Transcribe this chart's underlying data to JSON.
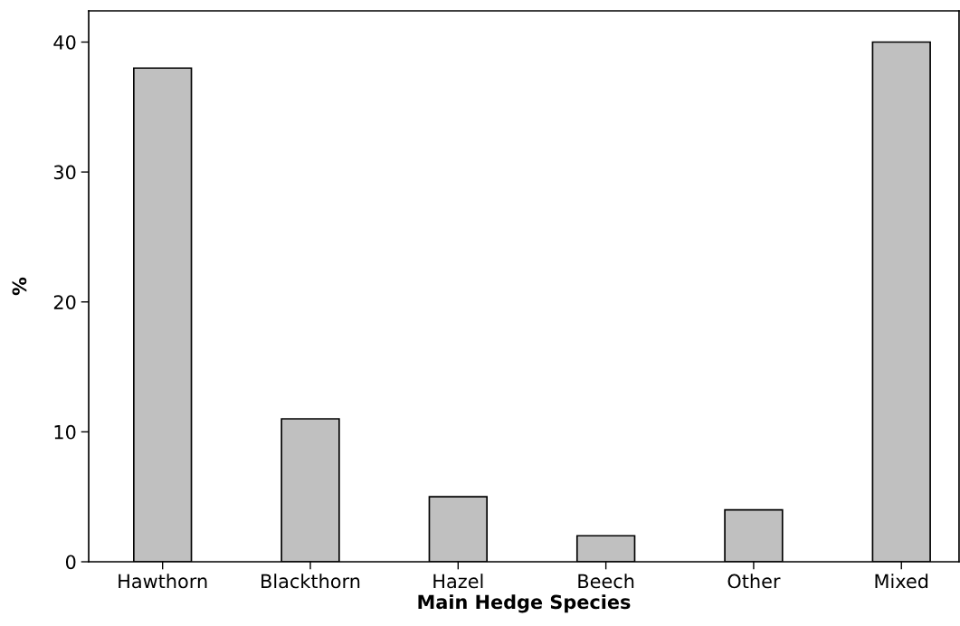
{
  "chart_data": {
    "type": "bar",
    "xlabel": "Main Hedge Species",
    "ylabel": "%",
    "categories": [
      "Hawthorn",
      "Blackthorn",
      "Hazel",
      "Beech",
      "Other",
      "Mixed"
    ],
    "values": [
      38,
      11,
      5,
      2,
      4,
      40
    ],
    "color": "#c0c0c0",
    "ylim": [
      0,
      42.4
    ],
    "yticks": [
      0,
      10,
      20,
      30,
      40
    ],
    "grid": false,
    "legend": false
  }
}
